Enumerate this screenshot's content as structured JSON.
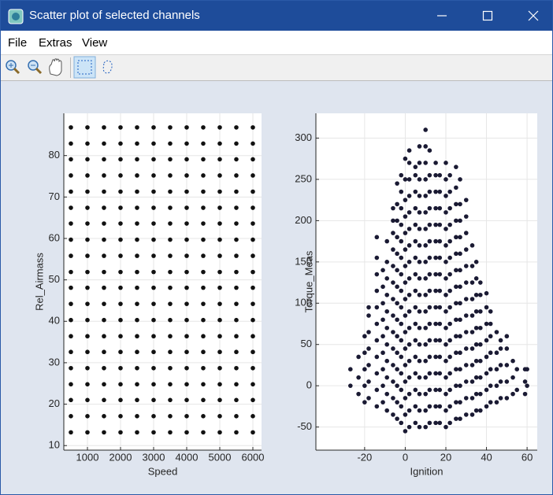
{
  "window": {
    "title": "Scatter plot of selected channels"
  },
  "menu": [
    "File",
    "Extras",
    "View"
  ],
  "chart_data": [
    {
      "type": "scatter",
      "x_label": "Speed",
      "y_label": "Rel_Airmass",
      "color": "#111111",
      "grid": true,
      "xlim": [
        286,
        6262
      ],
      "ylim": [
        8.9,
        90.2
      ],
      "xticks": [
        1000,
        2000,
        3000,
        4000,
        5000,
        6000
      ],
      "yticks": [
        10,
        20,
        30,
        40,
        50,
        60,
        70,
        80
      ],
      "x": [
        500,
        500,
        500,
        500,
        500,
        500,
        500,
        500,
        500,
        500,
        500,
        500,
        500,
        500,
        500,
        500,
        500,
        500,
        500,
        500,
        1000,
        1000,
        1000,
        1000,
        1000,
        1000,
        1000,
        1000,
        1000,
        1000,
        1000,
        1000,
        1000,
        1000,
        1000,
        1000,
        1000,
        1000,
        1000,
        1000,
        1500,
        1500,
        1500,
        1500,
        1500,
        1500,
        1500,
        1500,
        1500,
        1500,
        1500,
        1500,
        1500,
        1500,
        1500,
        1500,
        1500,
        1500,
        1500,
        1500,
        2000,
        2000,
        2000,
        2000,
        2000,
        2000,
        2000,
        2000,
        2000,
        2000,
        2000,
        2000,
        2000,
        2000,
        2000,
        2000,
        2000,
        2000,
        2000,
        2000,
        2500,
        2500,
        2500,
        2500,
        2500,
        2500,
        2500,
        2500,
        2500,
        2500,
        2500,
        2500,
        2500,
        2500,
        2500,
        2500,
        2500,
        2500,
        2500,
        2500,
        3000,
        3000,
        3000,
        3000,
        3000,
        3000,
        3000,
        3000,
        3000,
        3000,
        3000,
        3000,
        3000,
        3000,
        3000,
        3000,
        3000,
        3000,
        3000,
        3000,
        3500,
        3500,
        3500,
        3500,
        3500,
        3500,
        3500,
        3500,
        3500,
        3500,
        3500,
        3500,
        3500,
        3500,
        3500,
        3500,
        3500,
        3500,
        3500,
        3500,
        4000,
        4000,
        4000,
        4000,
        4000,
        4000,
        4000,
        4000,
        4000,
        4000,
        4000,
        4000,
        4000,
        4000,
        4000,
        4000,
        4000,
        4000,
        4000,
        4000,
        4500,
        4500,
        4500,
        4500,
        4500,
        4500,
        4500,
        4500,
        4500,
        4500,
        4500,
        4500,
        4500,
        4500,
        4500,
        4500,
        4500,
        4500,
        4500,
        4500,
        5000,
        5000,
        5000,
        5000,
        5000,
        5000,
        5000,
        5000,
        5000,
        5000,
        5000,
        5000,
        5000,
        5000,
        5000,
        5000,
        5000,
        5000,
        5000,
        5000,
        5500,
        5500,
        5500,
        5500,
        5500,
        5500,
        5500,
        5500,
        5500,
        5500,
        5500,
        5500,
        5500,
        5500,
        5500,
        5500,
        5500,
        5500,
        5500,
        5500,
        6000,
        6000,
        6000,
        6000,
        6000,
        6000,
        6000,
        6000,
        6000,
        6000,
        6000,
        6000,
        6000,
        6000,
        6000,
        6000,
        6000,
        6000,
        6000,
        6000
      ],
      "values": [
        13.2,
        17.1,
        21.0,
        24.8,
        28.7,
        32.6,
        36.4,
        40.3,
        44.2,
        48.1,
        51.9,
        55.8,
        59.7,
        63.6,
        67.4,
        71.3,
        75.2,
        79.1,
        82.9,
        86.8,
        13.2,
        17.1,
        21.0,
        24.8,
        28.7,
        32.6,
        36.4,
        40.3,
        44.2,
        48.1,
        51.9,
        55.8,
        59.7,
        63.6,
        67.4,
        71.3,
        75.2,
        79.1,
        82.9,
        86.8,
        13.2,
        17.1,
        21.0,
        24.8,
        28.7,
        32.6,
        36.4,
        40.3,
        44.2,
        48.1,
        51.9,
        55.8,
        59.7,
        63.6,
        67.4,
        71.3,
        75.2,
        79.1,
        82.9,
        86.8,
        13.2,
        17.1,
        21.0,
        24.8,
        28.7,
        32.6,
        36.4,
        40.3,
        44.2,
        48.1,
        51.9,
        55.8,
        59.7,
        63.6,
        67.4,
        71.3,
        75.2,
        79.1,
        82.9,
        86.8,
        13.2,
        17.1,
        21.0,
        24.8,
        28.7,
        32.6,
        36.4,
        40.3,
        44.2,
        48.1,
        51.9,
        55.8,
        59.7,
        63.6,
        67.4,
        71.3,
        75.2,
        79.1,
        82.9,
        86.8,
        13.2,
        17.1,
        21.0,
        24.8,
        28.7,
        32.6,
        36.4,
        40.3,
        44.2,
        48.1,
        51.9,
        55.8,
        59.7,
        63.6,
        67.4,
        71.3,
        75.2,
        79.1,
        82.9,
        86.8,
        13.2,
        17.1,
        21.0,
        24.8,
        28.7,
        32.6,
        36.4,
        40.3,
        44.2,
        48.1,
        51.9,
        55.8,
        59.7,
        63.6,
        67.4,
        71.3,
        75.2,
        79.1,
        82.9,
        86.8,
        13.2,
        17.1,
        21.0,
        24.8,
        28.7,
        32.6,
        36.4,
        40.3,
        44.2,
        48.1,
        51.9,
        55.8,
        59.7,
        63.6,
        67.4,
        71.3,
        75.2,
        79.1,
        82.9,
        86.8,
        13.2,
        17.1,
        21.0,
        24.8,
        28.7,
        32.6,
        36.4,
        40.3,
        44.2,
        48.1,
        51.9,
        55.8,
        59.7,
        63.6,
        67.4,
        71.3,
        75.2,
        79.1,
        82.9,
        86.8,
        13.2,
        17.1,
        21.0,
        24.8,
        28.7,
        32.6,
        36.4,
        40.3,
        44.2,
        48.1,
        51.9,
        55.8,
        59.7,
        63.6,
        67.4,
        71.3,
        75.2,
        79.1,
        82.9,
        86.8,
        13.2,
        17.1,
        21.0,
        24.8,
        28.7,
        32.6,
        36.4,
        40.3,
        44.2,
        48.1,
        51.9,
        55.8,
        59.7,
        63.6,
        67.4,
        71.3,
        75.2,
        79.1,
        82.9,
        86.8,
        13.2,
        17.1,
        21.0,
        24.8,
        28.7,
        32.6,
        36.4,
        40.3,
        44.2,
        48.1,
        51.9,
        55.8,
        59.7,
        63.6,
        67.4,
        71.3,
        75.2,
        79.1,
        82.9,
        86.8
      ]
    },
    {
      "type": "scatter",
      "x_label": "Ignition",
      "y_label": "Torque_Meas",
      "color": "#1a1a33",
      "grid": true,
      "xlim": [
        -44,
        65
      ],
      "ylim": [
        -78,
        330
      ],
      "xticks": [
        -20,
        0,
        20,
        40,
        60
      ],
      "yticks": [
        -50,
        0,
        50,
        100,
        150,
        200,
        250,
        300
      ],
      "x": [
        -27,
        -27,
        -23,
        -23,
        -23,
        -20,
        -20,
        -20,
        -20,
        -20,
        -18,
        -18,
        -18,
        -18,
        -18,
        -18,
        -18,
        -14,
        -14,
        -14,
        -14,
        -14,
        -14,
        -14,
        -14,
        -14,
        -14,
        -14,
        -11,
        -11,
        -11,
        -11,
        -11,
        -11,
        -11,
        -11,
        -11,
        -9,
        -9,
        -9,
        -9,
        -9,
        -9,
        -9,
        -9,
        -9,
        -9,
        -9,
        -6,
        -6,
        -6,
        -6,
        -6,
        -6,
        -6,
        -6,
        -6,
        -6,
        -6,
        -6,
        -6,
        -6,
        -4,
        -4,
        -4,
        -4,
        -4,
        -4,
        -4,
        -4,
        -4,
        -4,
        -4,
        -4,
        -4,
        -4,
        -4,
        -2,
        -2,
        -2,
        -2,
        -2,
        -2,
        -2,
        -2,
        -2,
        -2,
        -2,
        -2,
        -2,
        -2,
        -2,
        -2,
        0,
        0,
        0,
        0,
        0,
        0,
        0,
        0,
        0,
        0,
        0,
        0,
        0,
        0,
        0,
        0,
        0,
        2,
        2,
        2,
        2,
        2,
        2,
        2,
        2,
        2,
        2,
        2,
        2,
        2,
        2,
        2,
        2,
        2,
        2,
        5,
        5,
        5,
        5,
        5,
        5,
        5,
        5,
        5,
        5,
        5,
        5,
        5,
        5,
        5,
        5,
        5,
        7,
        7,
        7,
        7,
        7,
        7,
        7,
        7,
        7,
        7,
        7,
        7,
        7,
        7,
        7,
        7,
        7,
        7,
        10,
        10,
        10,
        10,
        10,
        10,
        10,
        10,
        10,
        10,
        10,
        10,
        10,
        10,
        10,
        10,
        10,
        10,
        10,
        12,
        12,
        12,
        12,
        12,
        12,
        12,
        12,
        12,
        12,
        12,
        12,
        12,
        12,
        12,
        12,
        12,
        15,
        15,
        15,
        15,
        15,
        15,
        15,
        15,
        15,
        15,
        15,
        15,
        15,
        15,
        15,
        15,
        15,
        17,
        17,
        17,
        17,
        17,
        17,
        17,
        17,
        17,
        17,
        17,
        17,
        17,
        17,
        17,
        17,
        20,
        20,
        20,
        20,
        20,
        20,
        20,
        20,
        20,
        20,
        20,
        20,
        20,
        20,
        20,
        20,
        20,
        22,
        22,
        22,
        22,
        22,
        22,
        22,
        22,
        22,
        22,
        22,
        22,
        22,
        22,
        22,
        22,
        25,
        25,
        25,
        25,
        25,
        25,
        25,
        25,
        25,
        25,
        25,
        25,
        25,
        25,
        25,
        25,
        27,
        27,
        27,
        27,
        27,
        27,
        27,
        27,
        27,
        27,
        27,
        27,
        27,
        27,
        27,
        30,
        30,
        30,
        30,
        30,
        30,
        30,
        30,
        30,
        30,
        30,
        30,
        30,
        30,
        33,
        33,
        33,
        33,
        33,
        33,
        33,
        33,
        33,
        33,
        33,
        35,
        35,
        35,
        35,
        35,
        35,
        35,
        35,
        35,
        35,
        37,
        37,
        37,
        37,
        37,
        37,
        37,
        37,
        37,
        40,
        40,
        40,
        40,
        40,
        40,
        40,
        40,
        42,
        42,
        42,
        42,
        42,
        42,
        42,
        45,
        45,
        45,
        45,
        45,
        47,
        47,
        47,
        47,
        47,
        50,
        50,
        50,
        50,
        50,
        53,
        53,
        53,
        55,
        55,
        59,
        59,
        59,
        60,
        60
      ],
      "values": [
        0,
        20,
        -10,
        10,
        35,
        -20,
        0,
        20,
        40,
        60,
        -15,
        5,
        25,
        45,
        65,
        85,
        95,
        -25,
        -5,
        15,
        35,
        55,
        75,
        95,
        115,
        135,
        155,
        180,
        -20,
        0,
        20,
        40,
        60,
        80,
        100,
        120,
        140,
        -30,
        -10,
        10,
        30,
        50,
        70,
        90,
        110,
        130,
        150,
        175,
        -35,
        -15,
        5,
        25,
        45,
        65,
        85,
        105,
        125,
        145,
        165,
        185,
        200,
        215,
        -40,
        -20,
        0,
        20,
        40,
        60,
        80,
        100,
        120,
        140,
        160,
        180,
        200,
        220,
        245,
        -45,
        -25,
        -5,
        15,
        35,
        55,
        75,
        95,
        115,
        135,
        155,
        175,
        195,
        215,
        235,
        255,
        -55,
        -35,
        -15,
        5,
        25,
        45,
        65,
        85,
        105,
        125,
        145,
        165,
        185,
        205,
        225,
        250,
        275,
        -50,
        -30,
        -10,
        10,
        30,
        50,
        70,
        90,
        110,
        130,
        150,
        170,
        190,
        210,
        230,
        250,
        270,
        285,
        -45,
        -25,
        -5,
        15,
        35,
        55,
        75,
        95,
        115,
        135,
        155,
        175,
        195,
        215,
        235,
        255,
        265,
        -50,
        -30,
        -10,
        10,
        30,
        50,
        70,
        90,
        110,
        130,
        150,
        170,
        190,
        210,
        230,
        250,
        270,
        290,
        -50,
        -30,
        -10,
        10,
        30,
        50,
        70,
        90,
        110,
        130,
        150,
        170,
        190,
        210,
        230,
        250,
        270,
        290,
        310,
        -45,
        -25,
        -5,
        15,
        35,
        55,
        75,
        95,
        115,
        135,
        155,
        175,
        195,
        215,
        235,
        255,
        285,
        -45,
        -25,
        -5,
        15,
        35,
        55,
        75,
        95,
        115,
        135,
        155,
        175,
        195,
        215,
        235,
        255,
        270,
        -45,
        -25,
        -5,
        15,
        35,
        55,
        75,
        95,
        115,
        135,
        155,
        175,
        195,
        215,
        235,
        255,
        -50,
        -30,
        -10,
        10,
        30,
        50,
        70,
        90,
        110,
        130,
        150,
        170,
        190,
        210,
        230,
        250,
        270,
        -45,
        -25,
        -5,
        15,
        35,
        55,
        75,
        95,
        115,
        135,
        155,
        175,
        195,
        215,
        235,
        255,
        -40,
        -20,
        0,
        20,
        40,
        60,
        80,
        100,
        120,
        140,
        160,
        180,
        200,
        220,
        240,
        265,
        -40,
        -20,
        0,
        20,
        40,
        60,
        80,
        100,
        120,
        140,
        160,
        180,
        200,
        220,
        250,
        -35,
        -15,
        5,
        25,
        45,
        65,
        85,
        105,
        125,
        145,
        165,
        185,
        205,
        225,
        -35,
        -15,
        5,
        25,
        45,
        65,
        85,
        105,
        125,
        145,
        170,
        -30,
        -10,
        10,
        30,
        50,
        70,
        90,
        110,
        130,
        150,
        -30,
        -10,
        10,
        30,
        50,
        70,
        90,
        110,
        125,
        -25,
        -5,
        15,
        35,
        55,
        75,
        95,
        112,
        -20,
        0,
        20,
        40,
        60,
        75,
        90,
        -20,
        0,
        20,
        40,
        65,
        -15,
        5,
        25,
        45,
        55,
        -15,
        5,
        25,
        45,
        60,
        -10,
        10,
        30,
        -5,
        20,
        -10,
        5,
        20,
        0,
        20
      ]
    }
  ]
}
